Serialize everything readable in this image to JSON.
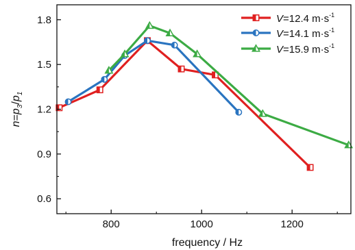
{
  "chart_data": {
    "type": "line",
    "xlabel": "frequency / Hz",
    "ylabel_parts": {
      "n": "n",
      "eq": "=",
      "p3": "p",
      "sub3": "3",
      "slash": "/",
      "p1": "p",
      "sub1": "1"
    },
    "xlim": [
      680,
      1330
    ],
    "ylim": [
      0.5,
      1.9
    ],
    "x_ticks": [
      800,
      1000,
      1200
    ],
    "x_tick_labels": [
      "800",
      "1000",
      "1200"
    ],
    "y_ticks": [
      0.6,
      0.9,
      1.2,
      1.5,
      1.8
    ],
    "y_tick_labels": [
      "0.6",
      "0.9",
      "1.2",
      "1.5",
      "1.8"
    ],
    "legend_position": "top-right",
    "series": [
      {
        "name": "V=12.4 m·s-1",
        "legend": {
          "v": "V",
          "rest": "=12.4 m·s",
          "sup": "-1"
        },
        "color": "#e02020",
        "marker": "square-half",
        "points": [
          [
            685,
            1.21
          ],
          [
            775,
            1.33
          ],
          [
            880,
            1.66
          ],
          [
            955,
            1.47
          ],
          [
            1030,
            1.43
          ],
          [
            1240,
            0.81
          ]
        ]
      },
      {
        "name": "V=14.1 m·s-1",
        "legend": {
          "v": "V",
          "rest": "=14.1 m·s",
          "sup": "-1"
        },
        "color": "#2a74c0",
        "marker": "circle-half",
        "points": [
          [
            705,
            1.25
          ],
          [
            785,
            1.4
          ],
          [
            830,
            1.56
          ],
          [
            880,
            1.66
          ],
          [
            940,
            1.63
          ],
          [
            1082,
            1.18
          ]
        ]
      },
      {
        "name": "V=15.9 m·s-1",
        "legend": {
          "v": "V",
          "rest": "=15.9 m·s",
          "sup": "-1"
        },
        "color": "#3cab44",
        "marker": "triangle-half",
        "points": [
          [
            795,
            1.46
          ],
          [
            830,
            1.57
          ],
          [
            885,
            1.76
          ],
          [
            930,
            1.71
          ],
          [
            990,
            1.57
          ],
          [
            1135,
            1.17
          ],
          [
            1325,
            0.96
          ]
        ]
      }
    ]
  }
}
